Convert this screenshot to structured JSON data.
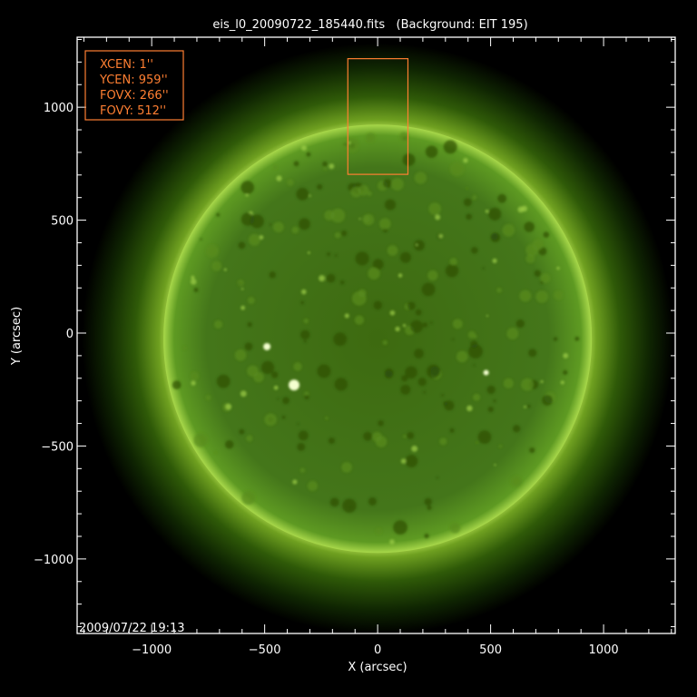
{
  "chart_data": {
    "type": "image",
    "title": "eis_l0_20090722_185440.fits   (Background: EIT 195)",
    "xlabel": "X (arcsec)",
    "ylabel": "Y (arcsec)",
    "xlim": [
      -1330,
      1317
    ],
    "ylim": [
      -1330,
      1310
    ],
    "xticks": [
      -1000,
      -500,
      0,
      500,
      1000
    ],
    "yticks": [
      -1000,
      -500,
      0,
      500,
      1000
    ],
    "xtick_labels": [
      "−1000",
      "−500",
      "0",
      "500",
      "1000"
    ],
    "ytick_labels": [
      "−1000",
      "−500",
      "0",
      "500",
      "1000"
    ],
    "minor_tick_step": 100,
    "grid": false,
    "timestamp": "2009/07/22 19:13",
    "sun": {
      "center": [
        0,
        -25
      ],
      "radius_arcsec": 948
    },
    "fov_box": {
      "xcen": 1,
      "ycen": 959,
      "fovx": 266,
      "fovy": 512
    },
    "info_box": {
      "lines": [
        "XCEN:  1''",
        "YCEN:  959''",
        "FOVX:  266''",
        "FOVY:  512''"
      ]
    },
    "colors": {
      "overlay": "#ff7f32",
      "axes": "#ffffff",
      "sun_disk": "#3f6b10",
      "limb": "#c8f060",
      "background": "#000000"
    }
  }
}
